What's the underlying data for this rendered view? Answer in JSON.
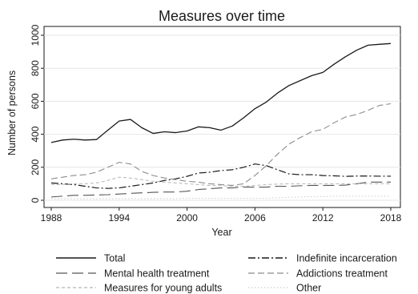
{
  "chart_data": {
    "type": "line",
    "title": "Measures over time",
    "xlabel": "Year",
    "ylabel": "Number of persons",
    "xlim": [
      1988,
      2018
    ],
    "ylim": [
      0,
      1000
    ],
    "x_ticks": [
      1988,
      1994,
      2000,
      2006,
      2012,
      2018
    ],
    "y_ticks": [
      0,
      200,
      400,
      600,
      800,
      1000
    ],
    "grid": "horizontal",
    "legend_placement": "bottom",
    "x": [
      1988,
      1989,
      1990,
      1991,
      1992,
      1993,
      1994,
      1995,
      1996,
      1997,
      1998,
      1999,
      2000,
      2001,
      2002,
      2003,
      2004,
      2005,
      2006,
      2007,
      2008,
      2009,
      2010,
      2011,
      2012,
      2013,
      2014,
      2015,
      2016,
      2017,
      2018
    ],
    "series": [
      {
        "name": "Total",
        "color": "#1a1a1a",
        "dash": "solid",
        "width": 1.3,
        "values": [
          350,
          365,
          370,
          365,
          368,
          425,
          480,
          490,
          440,
          405,
          415,
          410,
          420,
          445,
          440,
          425,
          450,
          500,
          555,
          595,
          650,
          695,
          725,
          755,
          775,
          825,
          870,
          910,
          940,
          945,
          950
        ]
      },
      {
        "name": "Indefinite incarceration",
        "color": "#1a1a1a",
        "dash": "dashdot",
        "width": 1.2,
        "values": [
          105,
          100,
          95,
          85,
          75,
          72,
          75,
          85,
          95,
          105,
          120,
          130,
          145,
          165,
          170,
          180,
          185,
          200,
          220,
          210,
          185,
          160,
          155,
          155,
          150,
          148,
          145,
          147,
          147,
          146,
          146
        ]
      },
      {
        "name": "Mental health treatment",
        "color": "#555555",
        "dash": "longdash",
        "width": 1.1,
        "values": [
          20,
          25,
          30,
          30,
          32,
          34,
          38,
          42,
          45,
          48,
          50,
          50,
          55,
          65,
          70,
          75,
          75,
          80,
          80,
          80,
          85,
          85,
          88,
          90,
          90,
          90,
          92,
          100,
          110,
          110,
          110
        ]
      },
      {
        "name": "Addictions treatment",
        "color": "#8c8c8c",
        "dash": "dash",
        "width": 1.1,
        "values": [
          130,
          140,
          150,
          155,
          170,
          200,
          230,
          220,
          175,
          150,
          135,
          125,
          115,
          110,
          100,
          95,
          90,
          100,
          150,
          210,
          280,
          340,
          380,
          415,
          430,
          470,
          505,
          520,
          545,
          575,
          585
        ]
      },
      {
        "name": "Measures for young adults",
        "color": "#b4b4b4",
        "dash": "shortdash",
        "width": 1.0,
        "values": [
          95,
          95,
          100,
          100,
          105,
          120,
          140,
          135,
          125,
          115,
          110,
          105,
          100,
          95,
          90,
          88,
          85,
          85,
          90,
          95,
          98,
          100,
          100,
          100,
          100,
          100,
          100,
          100,
          100,
          100,
          100
        ]
      },
      {
        "name": "Other",
        "color": "#cdcdcd",
        "dash": "dot",
        "width": 1.0,
        "values": [
          10,
          10,
          10,
          10,
          10,
          10,
          10,
          10,
          10,
          10,
          10,
          10,
          12,
          12,
          12,
          12,
          12,
          12,
          12,
          13,
          15,
          18,
          20,
          22,
          22,
          25,
          25,
          25,
          25,
          25,
          25
        ]
      }
    ]
  }
}
